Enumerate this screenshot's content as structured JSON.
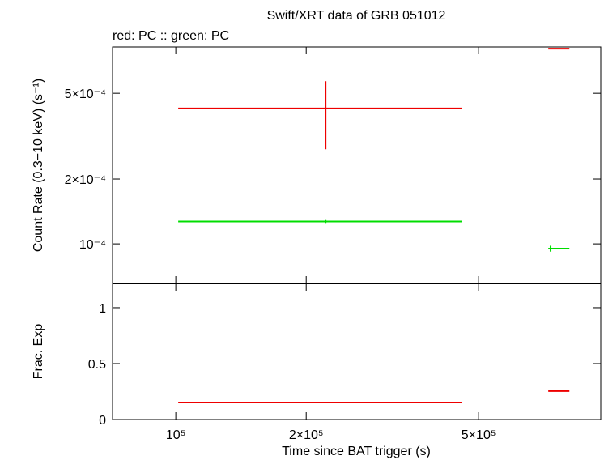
{
  "chart_data": [
    {
      "type": "errorbar",
      "title": "Swift/XRT data of GRB 051012",
      "subtitle": "red: PC  :: green: PC",
      "ylabel": "Count Rate (0.3−10 keV) (s⁻¹)",
      "log_y": true,
      "ylim": [
        6.55e-05,
        0.00082
      ],
      "yticks": [
        {
          "value": 0.0005,
          "label": "5×10⁻⁴"
        },
        {
          "value": 0.0002,
          "label": "2×10⁻⁴"
        },
        {
          "value": 0.0001,
          "label": "10⁻⁴"
        }
      ],
      "series": [
        {
          "color": "#ee0000",
          "x": [
            221700,
            766000
          ],
          "x_lo": [
            101300,
            724000
          ],
          "x_hi": [
            457000,
            810000
          ],
          "values": [
            0.000425,
            0.000805
          ],
          "y_lo": [
            0.000275,
            null
          ],
          "y_hi": [
            0.000569,
            null
          ]
        },
        {
          "color": "#00dd00",
          "x": [
            221700,
            733000
          ],
          "x_lo": [
            101300,
            724000
          ],
          "x_hi": [
            457000,
            810000
          ],
          "values": [
            0.000127,
            9.5e-05
          ],
          "y_lo": [
            0.000125,
            9.2e-05
          ],
          "y_hi": [
            0.000129,
            9.8e-05
          ]
        }
      ]
    },
    {
      "type": "errorbar",
      "ylabel": "Frac. Exp",
      "xlabel": "Time since BAT trigger (s)",
      "log_x": true,
      "xlim": [
        71450,
        957000
      ],
      "xticks": [
        {
          "value": 100000,
          "label": "10⁵"
        },
        {
          "value": 200000,
          "label": "2×10⁵"
        },
        {
          "value": 500000,
          "label": "5×10⁵"
        }
      ],
      "ylim": [
        0,
        1.217
      ],
      "yticks": [
        0,
        0.5,
        1
      ],
      "series": [
        {
          "color": "#ee0000",
          "x": [
            221700,
            766000
          ],
          "x_lo": [
            101300,
            724000
          ],
          "x_hi": [
            457000,
            810000
          ],
          "values": [
            0.152,
            0.254
          ]
        }
      ]
    }
  ]
}
